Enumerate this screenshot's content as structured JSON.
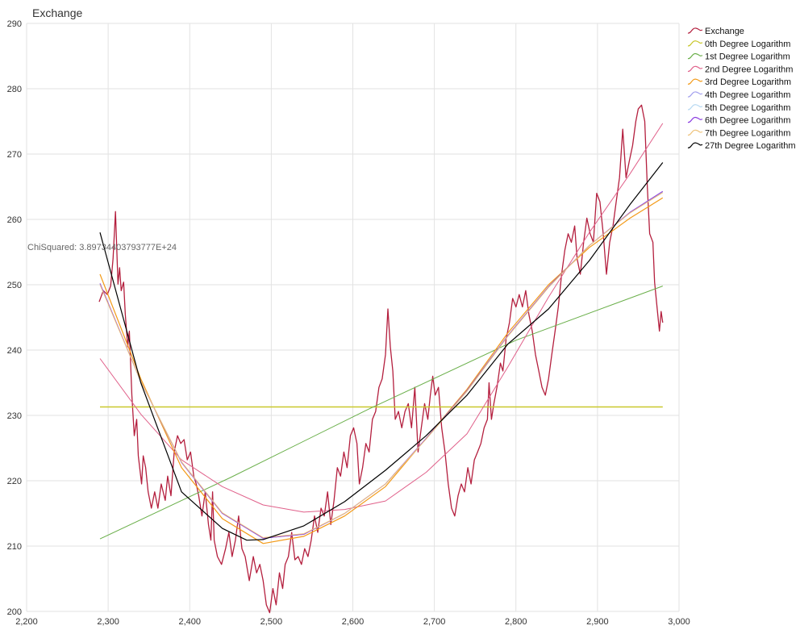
{
  "chart_data": {
    "type": "line",
    "title": "Exchange",
    "annotation": "ChiSquared: 3.89734403793777E+24",
    "xlim": [
      2200,
      3000
    ],
    "ylim": [
      200,
      290
    ],
    "x_ticks": [
      "2,200",
      "2,300",
      "2,400",
      "2,500",
      "2,600",
      "2,700",
      "2,800",
      "2,900",
      "3,000"
    ],
    "y_ticks": [
      "200",
      "210",
      "220",
      "230",
      "240",
      "250",
      "260",
      "270",
      "280",
      "290"
    ],
    "grid": true,
    "legend_position": "right",
    "series": [
      {
        "name": "Exchange",
        "color": "#b41f3e",
        "width": 1.3,
        "x": [
          2289,
          2294,
          2299,
          2303,
          2306,
          2309,
          2312,
          2314,
          2316,
          2319,
          2321,
          2324,
          2326,
          2329,
          2332,
          2335,
          2337,
          2341,
          2343,
          2346,
          2349,
          2353,
          2357,
          2361,
          2365,
          2370,
          2373,
          2377,
          2381,
          2385,
          2389,
          2393,
          2397,
          2401,
          2405,
          2408,
          2411,
          2415,
          2419,
          2423,
          2426,
          2428,
          2430,
          2434,
          2439,
          2444,
          2448,
          2452,
          2456,
          2460,
          2464,
          2468,
          2473,
          2478,
          2482,
          2486,
          2490,
          2494,
          2498,
          2502,
          2506,
          2510,
          2514,
          2517,
          2521,
          2525,
          2529,
          2533,
          2537,
          2541,
          2545,
          2549,
          2553,
          2557,
          2561,
          2565,
          2569,
          2573,
          2577,
          2581,
          2585,
          2589,
          2593,
          2597,
          2601,
          2605,
          2608,
          2612,
          2616,
          2620,
          2624,
          2628,
          2632,
          2636,
          2640,
          2643,
          2646,
          2649,
          2652,
          2656,
          2660,
          2664,
          2668,
          2672,
          2676,
          2680,
          2684,
          2688,
          2692,
          2695,
          2698,
          2701,
          2705,
          2709,
          2713,
          2717,
          2721,
          2725,
          2729,
          2733,
          2737,
          2741,
          2745,
          2749,
          2753,
          2757,
          2761,
          2765,
          2767,
          2770,
          2773,
          2777,
          2781,
          2784,
          2788,
          2792,
          2796,
          2800,
          2804,
          2808,
          2812,
          2816,
          2820,
          2824,
          2828,
          2832,
          2836,
          2840,
          2844,
          2848,
          2852,
          2856,
          2860,
          2864,
          2868,
          2872,
          2875,
          2879,
          2883,
          2887,
          2891,
          2895,
          2899,
          2903,
          2907,
          2911,
          2915,
          2919,
          2923,
          2927,
          2931,
          2935,
          2939,
          2943,
          2947,
          2950,
          2954,
          2958,
          2961,
          2964,
          2968,
          2970,
          2973,
          2976,
          2978,
          2980
        ],
        "y": [
          247.4,
          249.1,
          248.5,
          249.8,
          254,
          261.2,
          250.1,
          252.6,
          249.1,
          250.4,
          245.4,
          240.5,
          242.9,
          233.1,
          226.9,
          229.4,
          223.8,
          219.5,
          223.8,
          222,
          218.3,
          215.8,
          218.3,
          215.8,
          219.5,
          217,
          220.7,
          217.7,
          224.4,
          226.9,
          225.7,
          226.3,
          223.2,
          224.4,
          220.7,
          219.5,
          217.7,
          214.6,
          218.3,
          213.3,
          210.9,
          218.3,
          210.9,
          208.4,
          207.2,
          209.6,
          212.1,
          208.4,
          210.9,
          214.6,
          209.6,
          208.4,
          204.7,
          208.4,
          205.9,
          207.2,
          204.7,
          201,
          199.8,
          203.5,
          201,
          205.9,
          203.5,
          207.2,
          208.4,
          212.1,
          207.9,
          208.4,
          207.2,
          209.6,
          208.4,
          210.9,
          214.6,
          212.1,
          215.8,
          214.6,
          218.3,
          213.3,
          217,
          222,
          220.7,
          224.4,
          222,
          226.9,
          228.1,
          225.7,
          219.5,
          222,
          225.7,
          224.4,
          229.4,
          230.6,
          234.3,
          235.6,
          239.3,
          246.3,
          240.5,
          236.8,
          229.4,
          230.6,
          228.1,
          230.6,
          231.8,
          228.1,
          234.3,
          224.4,
          228.1,
          231.8,
          229.4,
          233.1,
          236,
          233.1,
          234.3,
          228.1,
          224.4,
          219.5,
          215.8,
          214.6,
          217.7,
          219.5,
          218.3,
          222,
          219.5,
          223.2,
          224.4,
          225.7,
          228.1,
          229.4,
          235,
          229.4,
          231.8,
          234.5,
          238,
          236.8,
          241.7,
          244.2,
          247.9,
          246.6,
          248.5,
          246.6,
          249.1,
          245.4,
          242.9,
          239.3,
          236.8,
          234.3,
          233.1,
          235.6,
          239.3,
          242.9,
          246.6,
          251.6,
          255.3,
          257.8,
          256.5,
          259,
          254,
          251.6,
          256.5,
          260.2,
          257.8,
          256.5,
          264,
          262.7,
          257.8,
          251.6,
          256.5,
          259,
          262.7,
          266.4,
          273.8,
          266.4,
          268.9,
          271.3,
          275,
          276.9,
          277.5,
          275,
          265.2,
          257.8,
          256.5,
          250.4,
          246.6,
          242.9,
          245.9,
          244.2
        ]
      },
      {
        "name": "0th Degree Logarithm",
        "color": "#c9c72c",
        "width": 1.6,
        "x": [
          2290,
          2980
        ],
        "y": [
          231.3,
          231.3
        ]
      },
      {
        "name": "1st Degree Logarithm",
        "color": "#6aaf4a",
        "width": 1,
        "x": [
          2290,
          2450,
          2620,
          2800,
          2980
        ],
        "y": [
          211.1,
          220.5,
          231,
          241.5,
          249.8
        ]
      },
      {
        "name": "2nd Degree Logarithm",
        "color": "#e0608a",
        "width": 1,
        "x": [
          2290,
          2340,
          2390,
          2440,
          2490,
          2540,
          2590,
          2640,
          2690,
          2740,
          2790,
          2840,
          2890,
          2940,
          2980
        ],
        "y": [
          238.7,
          230.2,
          223.2,
          219.1,
          216.3,
          215.2,
          215.6,
          216.9,
          221.3,
          227.2,
          237.4,
          248.1,
          258,
          267,
          274.7
        ]
      },
      {
        "name": "3rd Degree Logarithm",
        "color": "#f39a17",
        "width": 1.2,
        "x": [
          2290,
          2340,
          2390,
          2440,
          2490,
          2540,
          2590,
          2640,
          2690,
          2740,
          2790,
          2840,
          2890,
          2940,
          2980
        ],
        "y": [
          251.6,
          235.6,
          222,
          214.2,
          210.4,
          211.5,
          214.6,
          219.1,
          226.5,
          234,
          242.6,
          250,
          255.7,
          260.2,
          263.3
        ]
      },
      {
        "name": "4th Degree Logarithm",
        "color": "#a3a0ee",
        "width": 1,
        "x": [
          2290,
          2340,
          2390,
          2440,
          2490,
          2540,
          2590,
          2640,
          2690,
          2740,
          2790,
          2840,
          2890,
          2940,
          2980
        ],
        "y": [
          250.2,
          235.2,
          222.8,
          215,
          211.2,
          211.8,
          215,
          219.5,
          226.5,
          233.8,
          242.2,
          249.7,
          256,
          261,
          264.2
        ]
      },
      {
        "name": "5th Degree Logarithm",
        "color": "#b7d9f2",
        "width": 1,
        "x": [
          2290,
          2340,
          2390,
          2440,
          2490,
          2540,
          2590,
          2640,
          2690,
          2740,
          2790,
          2840,
          2890,
          2940,
          2980
        ],
        "y": [
          250.1,
          235.2,
          222.9,
          215.1,
          211.2,
          211.8,
          215,
          219.5,
          226.4,
          233.7,
          242.1,
          249.6,
          256,
          261,
          264.2
        ]
      },
      {
        "name": "6th Degree Logarithm",
        "color": "#8a3be0",
        "width": 1,
        "x": [
          2290,
          2340,
          2390,
          2440,
          2490,
          2540,
          2590,
          2640,
          2690,
          2740,
          2790,
          2840,
          2890,
          2940,
          2980
        ],
        "y": [
          250.2,
          235.2,
          222.8,
          215,
          211.2,
          211.8,
          215,
          219.5,
          226.5,
          233.8,
          242.2,
          249.7,
          256,
          261.1,
          264.3
        ]
      },
      {
        "name": "7th Degree Logarithm",
        "color": "#eec27a",
        "width": 1,
        "x": [
          2290,
          2340,
          2390,
          2440,
          2490,
          2540,
          2590,
          2640,
          2690,
          2740,
          2790,
          2840,
          2890,
          2940,
          2980
        ],
        "y": [
          250,
          235.2,
          222.9,
          215.1,
          211.3,
          211.9,
          215,
          219.5,
          226.4,
          233.7,
          242.1,
          249.6,
          256,
          261,
          264.1
        ]
      },
      {
        "name": "27th Degree Logarithm",
        "color": "#000000",
        "width": 1.2,
        "x": [
          2290,
          2340,
          2390,
          2440,
          2470,
          2490,
          2540,
          2590,
          2640,
          2690,
          2740,
          2790,
          2840,
          2890,
          2940,
          2980
        ],
        "y": [
          258,
          235,
          218.3,
          212.7,
          210.9,
          211,
          213.1,
          216.8,
          221.6,
          226.9,
          233.1,
          240.9,
          246.3,
          253.7,
          262.3,
          268.7
        ]
      }
    ]
  }
}
